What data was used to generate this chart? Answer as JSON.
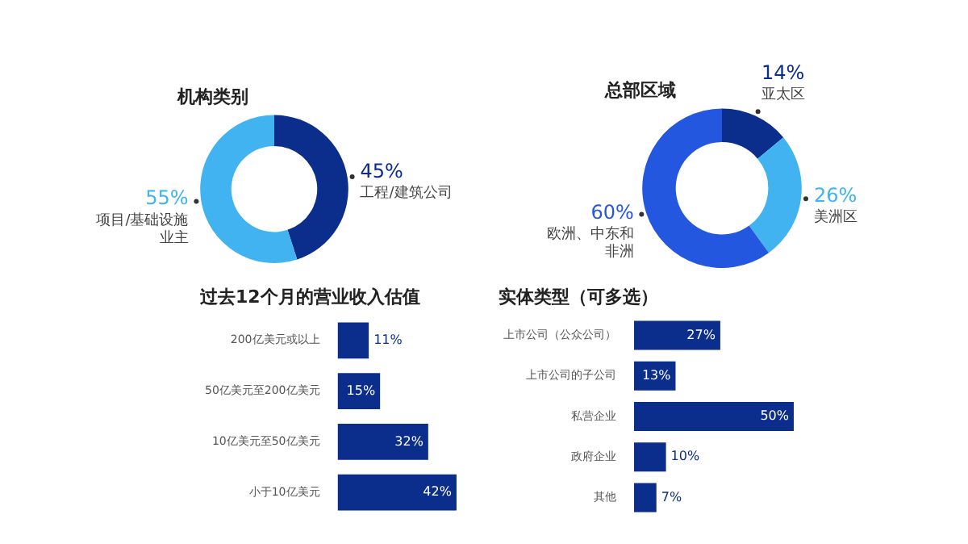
{
  "chart_data": [
    {
      "type": "donut",
      "title": "机构类别",
      "categories": [
        "工程/建筑公司",
        "项目/基础设施业主"
      ],
      "values": [
        45,
        55
      ],
      "colors": [
        "#0b2d8c",
        "#41b3f0"
      ],
      "value_labels": [
        "45%",
        "55%"
      ],
      "legend": false
    },
    {
      "type": "donut",
      "title": "总部区域",
      "categories": [
        "亚太区",
        "美洲区",
        "欧洲、中东和非洲"
      ],
      "values": [
        14,
        26,
        60
      ],
      "colors": [
        "#0b2d8c",
        "#41b3f0",
        "#2457e0"
      ],
      "value_labels": [
        "14%",
        "26%",
        "60%"
      ],
      "legend": false
    },
    {
      "type": "bar",
      "orientation": "horizontal",
      "title": "过去12个月的营业收入估值",
      "categories": [
        "200亿美元或以上",
        "50亿美元至200亿美元",
        "10亿美元至50亿美元",
        "小于10亿美元"
      ],
      "values": [
        11,
        15,
        32,
        42
      ],
      "value_labels": [
        "11%",
        "15%",
        "32%",
        "42%"
      ],
      "color": "#0b2d8c",
      "tick_labels": "y",
      "legend": false
    },
    {
      "type": "bar",
      "orientation": "horizontal",
      "title": "实体类型（可多选）",
      "categories": [
        "上市公司（公众公司）",
        "上市公司的子公司",
        "私营企业",
        "政府企业",
        "其他"
      ],
      "values": [
        27,
        13,
        50,
        10,
        7
      ],
      "value_labels": [
        "27%",
        "13%",
        "50%",
        "10%",
        "7%"
      ],
      "color": "#0b2d8c",
      "tick_labels": "y",
      "legend": false
    }
  ]
}
